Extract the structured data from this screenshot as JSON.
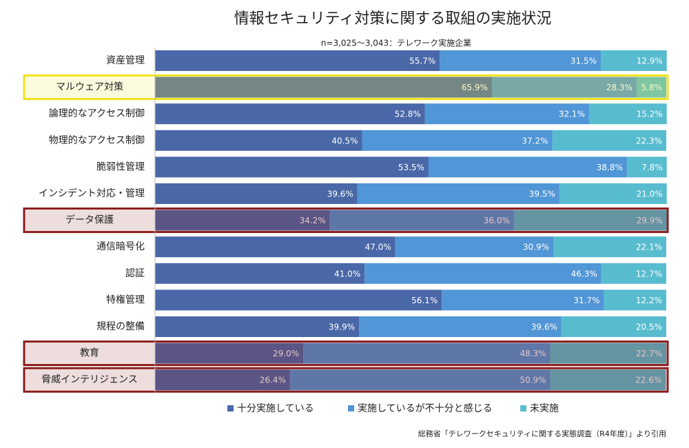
{
  "chart_data": {
    "type": "stacked_bar_horizontal",
    "title": "情報セキュリティ対策に関する取組の実施状況",
    "subtitle": "n=3,025～3,043：テレワーク実施企業",
    "source": "総務省「テレワークセキュリティに関する実態調査（R4年度）」より引用",
    "categories": [
      "資産管理",
      "マルウェア対策",
      "論理的なアクセス制御",
      "物理的なアクセス制御",
      "脆弱性管理",
      "インシデント対応・管理",
      "データ保護",
      "通信暗号化",
      "認証",
      "特権管理",
      "規程の整備",
      "教育",
      "脅威インテリジェンス"
    ],
    "xlim": [
      0,
      100
    ],
    "highlights": [
      null,
      "#f2e21a",
      null,
      null,
      null,
      null,
      "#8b1a1a",
      null,
      null,
      null,
      null,
      "#8b1a1a",
      "#8b1a1a"
    ],
    "series": [
      {
        "name": "十分実施している",
        "color": "#4a68a8",
        "values": [
          55.7,
          65.9,
          52.8,
          40.5,
          53.5,
          39.6,
          34.2,
          47.0,
          41.0,
          56.1,
          39.9,
          29.0,
          26.4
        ],
        "value_labels": [
          "55.7%",
          "65.9%",
          "52.8%",
          "40.5%",
          "53.5%",
          "39.6%",
          "34.2%",
          "47.0%",
          "41.0%",
          "56.1%",
          "39.9%",
          "29.0%",
          "26.4%"
        ]
      },
      {
        "name": "実施しているが不十分と感じる",
        "color": "#5196d6",
        "values": [
          31.5,
          28.3,
          32.1,
          37.2,
          38.8,
          39.5,
          36.0,
          30.9,
          46.3,
          31.7,
          39.6,
          48.3,
          50.9
        ],
        "value_labels": [
          "31.5%",
          "28.3%",
          "32.1%",
          "37.2%",
          "38.8%",
          "39.5%",
          "36.0%",
          "30.9%",
          "46.3%",
          "31.7%",
          "39.6%",
          "48.3%",
          "50.9%"
        ]
      },
      {
        "name": "未実施",
        "color": "#58bccf",
        "values": [
          12.9,
          5.8,
          15.2,
          22.3,
          7.8,
          21.0,
          29.9,
          22.1,
          12.7,
          12.2,
          20.5,
          22.7,
          22.6
        ],
        "value_labels": [
          "12.9%",
          "5.8%",
          "15.2%",
          "22.3%",
          "7.8%",
          "21.0%",
          "29.9%",
          "22.1%",
          "12.7%",
          "12.2%",
          "20.5%",
          "22.7%",
          "22.6%"
        ]
      }
    ]
  }
}
